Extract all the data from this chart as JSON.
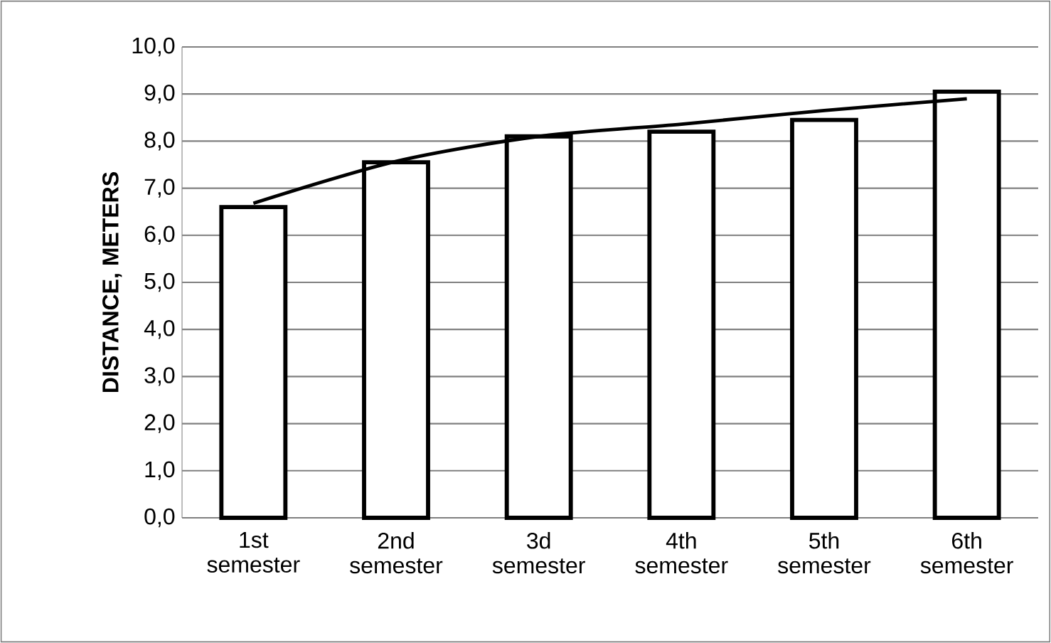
{
  "chart_data": {
    "type": "bar",
    "ylabel": "DISTANCE, METERS",
    "categories": [
      "1st semester",
      "2nd semester",
      "3d semester",
      "4th semester",
      "5th semester",
      "6th semester"
    ],
    "ylim": [
      0,
      10
    ],
    "yticks": [
      {
        "value": 0,
        "label": "0,0"
      },
      {
        "value": 1,
        "label": "1,0"
      },
      {
        "value": 2,
        "label": "2,0"
      },
      {
        "value": 3,
        "label": "3,0"
      },
      {
        "value": 4,
        "label": "4,0"
      },
      {
        "value": 5,
        "label": "5,0"
      },
      {
        "value": 6,
        "label": "6,0"
      },
      {
        "value": 7,
        "label": "7,0"
      },
      {
        "value": 8,
        "label": "8,0"
      },
      {
        "value": 9,
        "label": "9,0"
      },
      {
        "value": 10,
        "label": "10,0"
      }
    ],
    "grid": "y",
    "series": [
      {
        "color": "#ffffff",
        "values": [
          6.6,
          7.55,
          8.1,
          8.2,
          8.45,
          9.05
        ]
      },
      {
        "type": "line",
        "color": "#000000",
        "values": [
          6.68,
          7.57,
          8.1,
          8.36,
          8.65,
          8.9
        ]
      }
    ]
  }
}
